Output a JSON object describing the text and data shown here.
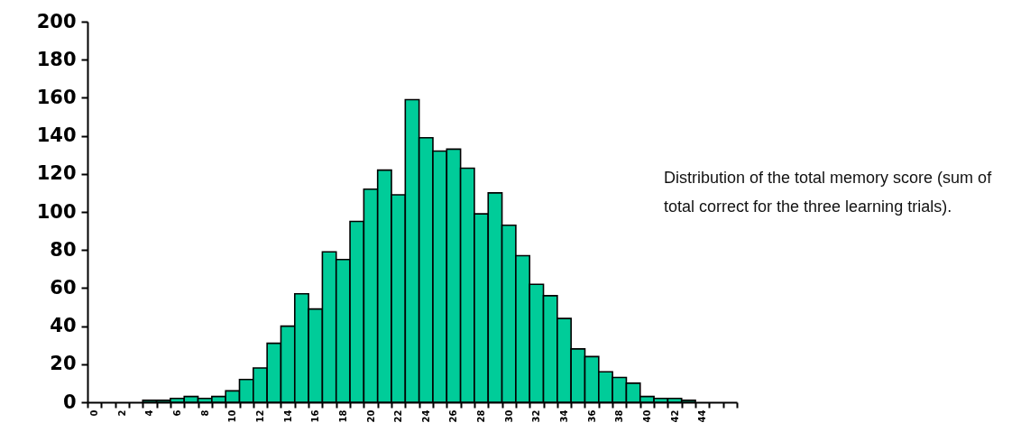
{
  "chart_data": {
    "type": "bar",
    "categories": [
      "0",
      null,
      "2",
      null,
      "4",
      null,
      "6",
      null,
      "8",
      null,
      "10",
      null,
      "12",
      null,
      "14",
      null,
      "16",
      null,
      "18",
      null,
      "20",
      null,
      "22",
      null,
      "24",
      null,
      "26",
      null,
      "28",
      null,
      "30",
      null,
      "32",
      null,
      "34",
      null,
      "36",
      null,
      "38",
      null,
      "40",
      null,
      "42",
      null,
      "44",
      null,
      null
    ],
    "values": [
      0,
      0,
      0,
      0,
      1,
      1,
      2,
      3,
      2,
      3,
      6,
      12,
      18,
      31,
      40,
      57,
      49,
      79,
      75,
      95,
      112,
      122,
      109,
      159,
      139,
      132,
      133,
      123,
      99,
      110,
      93,
      77,
      62,
      56,
      44,
      28,
      24,
      16,
      13,
      10,
      3,
      2,
      2,
      1,
      0,
      0,
      0
    ],
    "color": "#00cc99",
    "ylim": [
      0,
      200
    ],
    "yticks": [
      0,
      20,
      40,
      60,
      80,
      100,
      120,
      140,
      160,
      180,
      200
    ],
    "grid": false,
    "annotations": [
      "Distribution of the total memory score (sum of total correct for the three learning trials)."
    ]
  }
}
